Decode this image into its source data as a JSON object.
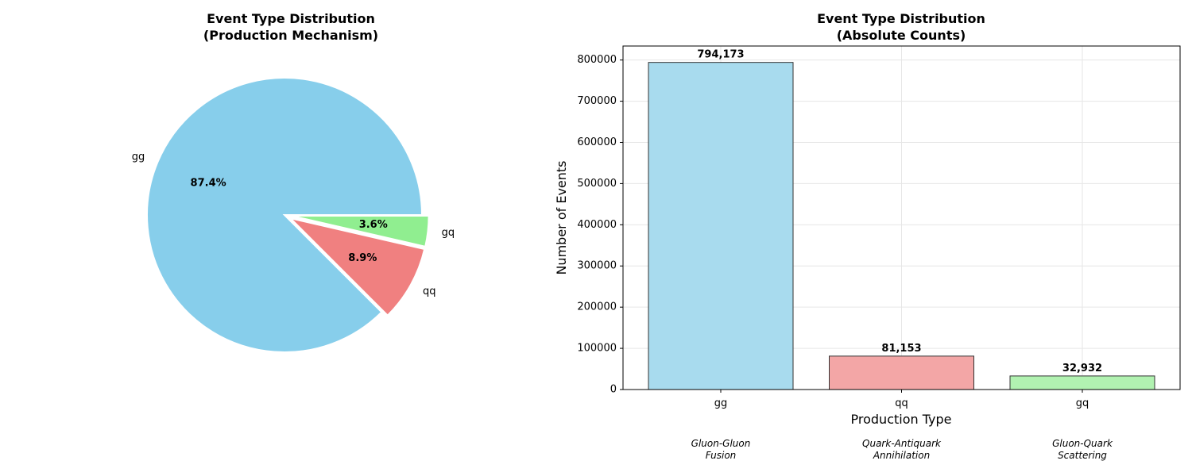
{
  "chart_data": [
    {
      "type": "pie",
      "title": "Event Type Distribution",
      "subtitle": "(Production Mechanism)",
      "labels": [
        "gg",
        "qq",
        "gq"
      ],
      "values": [
        87.4,
        8.9,
        3.6
      ],
      "value_labels": [
        "87.4%",
        "8.9%",
        "3.6%"
      ],
      "colors": [
        "#87CEEB",
        "#F08080",
        "#90EE90"
      ],
      "explode": [
        0,
        0.05,
        0.05
      ]
    },
    {
      "type": "bar",
      "title": "Event Type Distribution",
      "subtitle": "(Absolute Counts)",
      "categories": [
        "gg",
        "qq",
        "gq"
      ],
      "values": [
        794173,
        81153,
        32932
      ],
      "value_labels": [
        "794,173",
        "81,153",
        "32,932"
      ],
      "descriptions": [
        [
          "Gluon-Gluon",
          "Fusion"
        ],
        [
          "Quark-Antiquark",
          "Annihilation"
        ],
        [
          "Gluon-Quark",
          "Scattering"
        ]
      ],
      "colors": [
        "#A8DBEE",
        "#F3A6A6",
        "#B1F2B1"
      ],
      "xlabel": "Production Type",
      "ylabel": "Number of Events",
      "ylim": [
        0,
        834000
      ],
      "yticks": [
        0,
        100000,
        200000,
        300000,
        400000,
        500000,
        600000,
        700000,
        800000
      ],
      "grid": true
    }
  ]
}
